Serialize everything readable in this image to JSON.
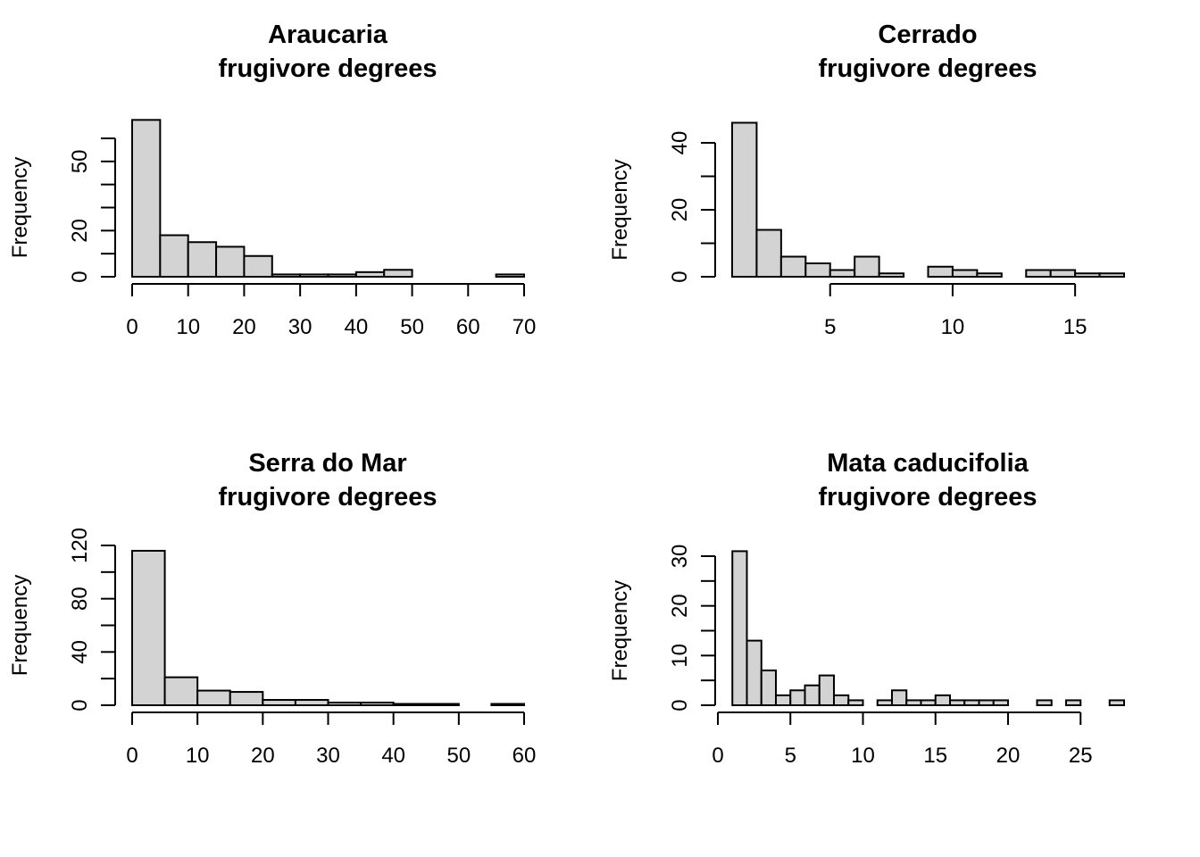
{
  "chart_data": [
    {
      "type": "bar",
      "title": [
        "Araucaria",
        "frugivore degrees"
      ],
      "xlabel": "",
      "ylabel": "Frequency",
      "bin_width": 5,
      "bin_start": 0,
      "values": [
        68,
        18,
        15,
        13,
        9,
        1,
        1,
        1,
        2,
        3,
        0,
        0,
        0,
        1
      ],
      "xlim": [
        0,
        70
      ],
      "ylim": [
        0,
        60
      ],
      "xticks": [
        0,
        10,
        20,
        30,
        40,
        50,
        60,
        70
      ],
      "yticks": [
        0,
        10,
        20,
        30,
        40,
        50,
        60
      ],
      "ytick_labels": [
        0,
        20,
        50
      ]
    },
    {
      "type": "bar",
      "title": [
        "Cerrado",
        "frugivore degrees"
      ],
      "xlabel": "",
      "ylabel": "Frequency",
      "bin_width": 1,
      "bin_start": 1,
      "values": [
        46,
        14,
        6,
        4,
        2,
        6,
        1,
        0,
        3,
        2,
        1,
        0,
        2,
        2,
        1,
        1
      ],
      "xlim": [
        1,
        17
      ],
      "ylim": [
        0,
        40
      ],
      "xticks": [
        5,
        10,
        15
      ],
      "yticks": [
        0,
        10,
        20,
        30,
        40
      ],
      "ytick_labels": [
        0,
        20,
        40
      ]
    },
    {
      "type": "bar",
      "title": [
        "Serra do Mar",
        "frugivore degrees"
      ],
      "xlabel": "",
      "ylabel": "Frequency",
      "bin_width": 5,
      "bin_start": 0,
      "values": [
        116,
        21,
        11,
        10,
        4,
        4,
        2,
        2,
        1,
        1,
        0,
        1
      ],
      "xlim": [
        0,
        60
      ],
      "ylim": [
        0,
        120
      ],
      "xticks": [
        0,
        10,
        20,
        30,
        40,
        50,
        60
      ],
      "yticks": [
        0,
        20,
        40,
        60,
        80,
        100,
        120
      ],
      "ytick_labels": [
        0,
        40,
        80,
        120
      ]
    },
    {
      "type": "bar",
      "title": [
        "Mata caducifolia",
        "frugivore degrees"
      ],
      "xlabel": "",
      "ylabel": "Frequency",
      "bin_width": 1,
      "bin_start": 1,
      "values": [
        31,
        13,
        7,
        2,
        3,
        4,
        6,
        2,
        1,
        0,
        1,
        3,
        1,
        1,
        2,
        1,
        1,
        1,
        1,
        0,
        0,
        1,
        0,
        1,
        0,
        0,
        1
      ],
      "xlim": [
        0,
        28
      ],
      "ylim": [
        0,
        30
      ],
      "xticks": [
        0,
        5,
        10,
        15,
        20,
        25
      ],
      "yticks": [
        0,
        5,
        10,
        15,
        20,
        25,
        30
      ],
      "ytick_labels": [
        0,
        10,
        20,
        30
      ]
    }
  ]
}
